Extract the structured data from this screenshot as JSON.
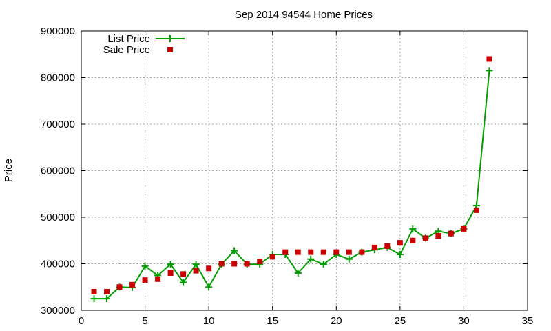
{
  "chart_data": {
    "type": "line",
    "title": "Sep 2014 94544 Home Prices",
    "xlabel": "",
    "ylabel": "Price",
    "xlim": [
      0,
      35
    ],
    "ylim": [
      300000,
      900000
    ],
    "xticks": [
      0,
      5,
      10,
      15,
      20,
      25,
      30,
      35
    ],
    "yticks": [
      300000,
      400000,
      500000,
      600000,
      700000,
      800000,
      900000
    ],
    "grid": true,
    "legend_position": "top-left",
    "series": [
      {
        "name": "List Price",
        "style": "line-with-plus-markers",
        "color": "#009e00",
        "x": [
          1,
          2,
          3,
          4,
          5,
          6,
          7,
          8,
          9,
          10,
          11,
          12,
          13,
          14,
          15,
          16,
          17,
          18,
          19,
          20,
          21,
          22,
          23,
          24,
          25,
          26,
          27,
          28,
          29,
          30,
          31,
          32
        ],
        "y": [
          325000,
          325000,
          350000,
          349000,
          395000,
          375000,
          399000,
          360000,
          399000,
          350000,
          399000,
          428000,
          399000,
          399000,
          420000,
          420000,
          380000,
          410000,
          399000,
          420000,
          410000,
          425000,
          430000,
          435000,
          420000,
          475000,
          455000,
          470000,
          465000,
          475000,
          525000,
          815000
        ]
      },
      {
        "name": "Sale Price",
        "style": "square-markers",
        "color": "#cc0000",
        "x": [
          1,
          2,
          3,
          4,
          5,
          6,
          7,
          8,
          9,
          10,
          11,
          12,
          13,
          14,
          15,
          16,
          17,
          18,
          19,
          20,
          21,
          22,
          23,
          24,
          25,
          26,
          27,
          28,
          29,
          30,
          31,
          32
        ],
        "y": [
          340000,
          340000,
          350000,
          355000,
          365000,
          367000,
          380000,
          378000,
          385000,
          390000,
          400000,
          400000,
          400000,
          405000,
          415000,
          425000,
          425000,
          425000,
          425000,
          425000,
          425000,
          425000,
          435000,
          438000,
          445000,
          450000,
          455000,
          460000,
          465000,
          475000,
          515000,
          840000
        ]
      }
    ]
  }
}
